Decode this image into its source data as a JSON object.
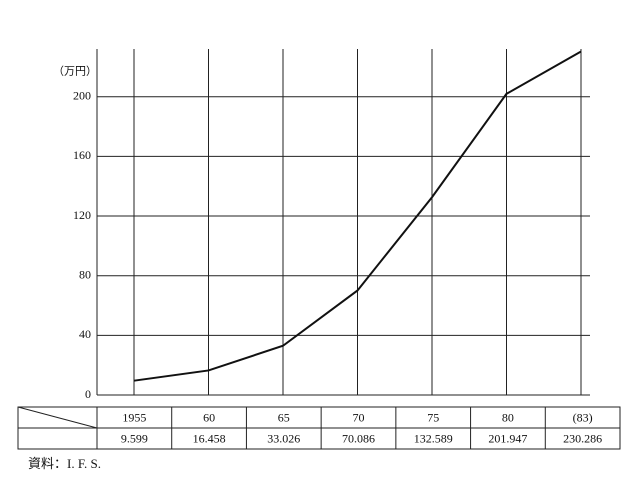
{
  "chart_data": {
    "type": "line",
    "unit": "（万円）",
    "categories": [
      "1955",
      "60",
      "65",
      "70",
      "75",
      "80",
      "(83)"
    ],
    "values": [
      9.599,
      16.458,
      33.026,
      70.086,
      132.589,
      201.947,
      230.286
    ],
    "color": "#111111",
    "ylim": [
      0,
      232
    ],
    "yticks": [
      0,
      40,
      80,
      120,
      160,
      200
    ],
    "grid": true,
    "source": "資料：I. F. S."
  }
}
